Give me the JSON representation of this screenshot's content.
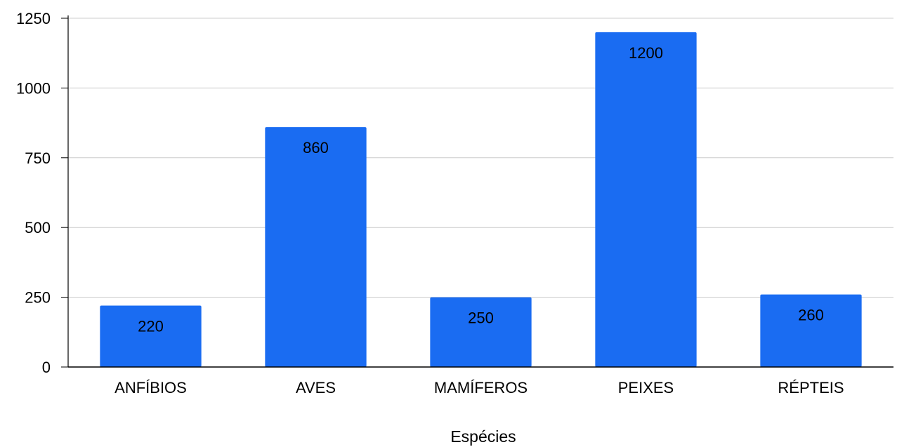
{
  "chart_data": {
    "type": "bar",
    "title": "",
    "xlabel": "Espécies",
    "ylabel": "",
    "categories": [
      "ANFÍBIOS",
      "AVES",
      "MAMÍFEROS",
      "PEIXES",
      "RÉPTEIS"
    ],
    "values": [
      220,
      860,
      250,
      1200,
      260
    ],
    "data_labels": [
      "220",
      "860",
      "250",
      "1200",
      "260"
    ],
    "ylim": [
      0,
      1250
    ],
    "yticks": [
      0,
      250,
      500,
      750,
      1000,
      1250
    ],
    "ytick_labels": [
      "0",
      "250",
      "500",
      "750",
      "1000",
      "1250"
    ],
    "grid": true,
    "legend": "none",
    "colors": {
      "bar": "#1a6cf2",
      "grid": "#cccccc",
      "axis": "#000000",
      "text": "#000000"
    }
  }
}
